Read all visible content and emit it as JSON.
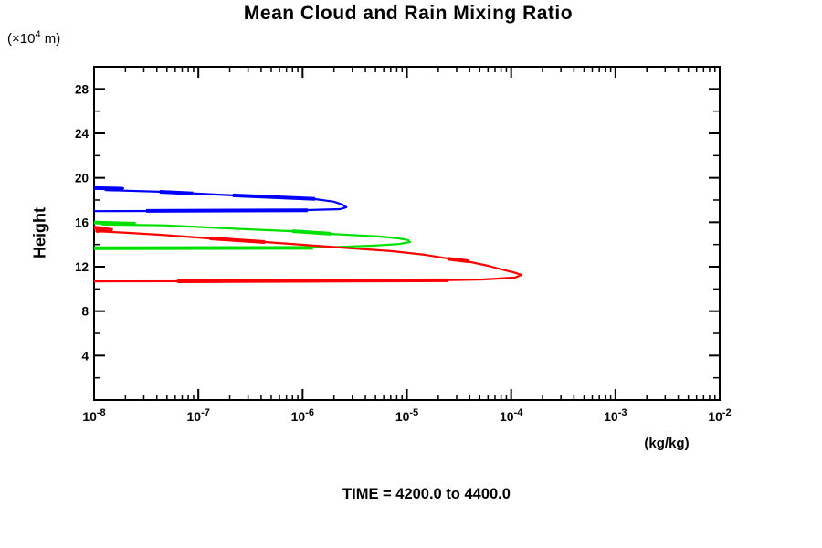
{
  "title": "Mean Cloud and Rain Mixing Ratio",
  "y_axis": {
    "label": "Height",
    "unit_prefix": "(×10",
    "unit_exponent": "4",
    "unit_suffix": " m)"
  },
  "x_axis": {
    "unit": "(kg/kg)"
  },
  "annotation": "TIME = 4200.0 to 4400.0",
  "chart_data": {
    "type": "line",
    "title": "Mean Cloud and Rain Mixing Ratio",
    "xlabel": "(kg/kg)",
    "ylabel": "Height (×10⁴ m)",
    "x_scale": "log10",
    "xlim": [
      1e-08,
      0.01
    ],
    "x_tick_exponents": [
      -8,
      -7,
      -6,
      -5,
      -4,
      -3,
      -2
    ],
    "x_minor_tick_multiples": [
      2,
      3,
      4,
      5,
      6,
      7,
      8,
      9
    ],
    "ylim": [
      0,
      30
    ],
    "y_major_ticks": [
      4,
      8,
      12,
      16,
      20,
      24,
      28
    ],
    "y_minor_step": 2,
    "grid": false,
    "legend": "none",
    "annotation": "TIME = 4200.0 to 4400.0",
    "point_format": "[log10(mixing_ratio kg/kg), height ×10⁴ m]",
    "series": [
      {
        "name": "blue-profile",
        "color": "#0000ff",
        "peak": {
          "x": 2.6e-06,
          "height": 17.4
        },
        "points": [
          [
            -8.0,
            19.1
          ],
          [
            -7.72,
            19.05
          ],
          [
            -7.89,
            18.9
          ],
          [
            -7.37,
            18.75
          ],
          [
            -7.05,
            18.6
          ],
          [
            -6.67,
            18.42
          ],
          [
            -6.19,
            18.25
          ],
          [
            -5.88,
            18.08
          ],
          [
            -5.7,
            17.85
          ],
          [
            -5.62,
            17.6
          ],
          [
            -5.58,
            17.35
          ],
          [
            -5.64,
            17.18
          ],
          [
            -5.92,
            17.1
          ],
          [
            -6.71,
            17.03
          ],
          [
            -8.0,
            17.0
          ]
        ],
        "thick_segments": [
          [
            [
              -8.0,
              19.08
            ],
            [
              -7.72,
              19.02
            ]
          ],
          [
            [
              -7.37,
              18.74
            ],
            [
              -7.05,
              18.6
            ]
          ],
          [
            [
              -6.67,
              18.42
            ],
            [
              -5.88,
              18.1
            ]
          ],
          [
            [
              -7.5,
              17.02
            ],
            [
              -5.95,
              17.08
            ]
          ]
        ]
      },
      {
        "name": "green-profile",
        "color": "#00e100",
        "peak": {
          "x": 1e-05,
          "height": 14.4
        },
        "points": [
          [
            -8.0,
            16.0
          ],
          [
            -7.76,
            15.95
          ],
          [
            -7.92,
            15.8
          ],
          [
            -7.33,
            15.72
          ],
          [
            -6.72,
            15.45
          ],
          [
            -6.1,
            15.2
          ],
          [
            -5.73,
            14.95
          ],
          [
            -5.27,
            14.72
          ],
          [
            -5.08,
            14.55
          ],
          [
            -4.99,
            14.4
          ],
          [
            -4.97,
            14.22
          ],
          [
            -5.07,
            14.05
          ],
          [
            -5.31,
            13.9
          ],
          [
            -5.74,
            13.75
          ],
          [
            -6.71,
            13.67
          ],
          [
            -8.0,
            13.65
          ]
        ],
        "thick_segments": [
          [
            [
              -8.0,
              15.98
            ],
            [
              -7.6,
              15.86
            ]
          ],
          [
            [
              -6.1,
              15.2
            ],
            [
              -5.73,
              14.97
            ]
          ],
          [
            [
              -8.0,
              13.66
            ],
            [
              -5.9,
              13.7
            ]
          ]
        ]
      },
      {
        "name": "red-profile",
        "color": "#ff0000",
        "peak": {
          "x": 0.00013,
          "height": 11.3
        },
        "points": [
          [
            -8.0,
            15.6
          ],
          [
            -7.87,
            15.45
          ],
          [
            -7.98,
            15.2
          ],
          [
            -7.68,
            15.05
          ],
          [
            -7.37,
            14.88
          ],
          [
            -6.89,
            14.55
          ],
          [
            -6.36,
            14.22
          ],
          [
            -5.74,
            13.8
          ],
          [
            -5.14,
            13.4
          ],
          [
            -4.83,
            13.08
          ],
          [
            -4.61,
            12.75
          ],
          [
            -4.43,
            12.5
          ],
          [
            -4.22,
            12.08
          ],
          [
            -4.09,
            11.75
          ],
          [
            -3.98,
            11.5
          ],
          [
            -3.9,
            11.27
          ],
          [
            -3.96,
            11.02
          ],
          [
            -4.27,
            10.85
          ],
          [
            -4.78,
            10.77
          ],
          [
            -5.57,
            10.7
          ],
          [
            -8.0,
            10.68
          ]
        ],
        "thick_segments": [
          [
            [
              -8.0,
              15.5
            ],
            [
              -7.82,
              15.3
            ]
          ],
          [
            [
              -7.98,
              15.18
            ],
            [
              -7.9,
              15.35
            ]
          ],
          [
            [
              -6.89,
              14.55
            ],
            [
              -6.36,
              14.22
            ]
          ],
          [
            [
              -4.61,
              12.72
            ],
            [
              -4.4,
              12.48
            ]
          ],
          [
            [
              -7.2,
              10.69
            ],
            [
              -4.6,
              10.78
            ]
          ]
        ]
      }
    ]
  }
}
